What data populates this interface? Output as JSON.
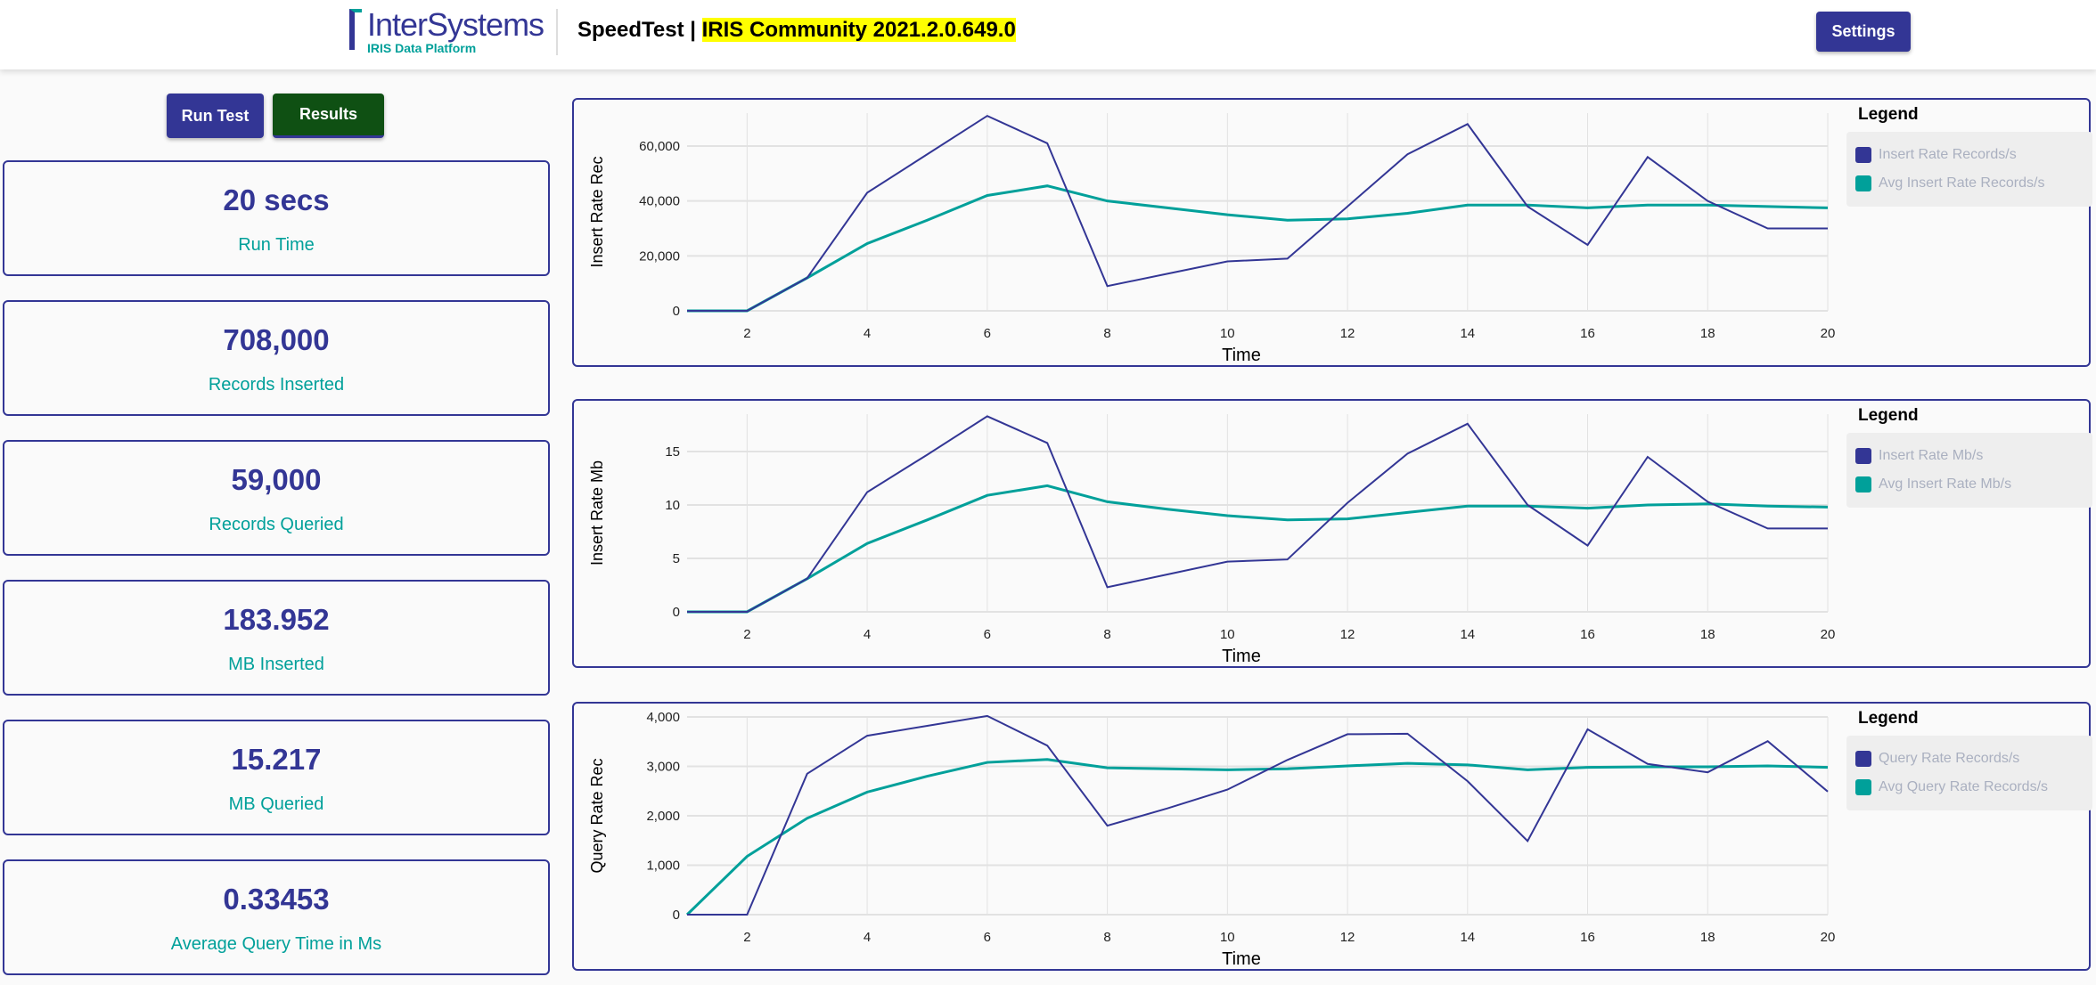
{
  "header": {
    "logo_name": "InterSystems",
    "logo_tag": "IRIS Data Platform",
    "app": "SpeedTest | ",
    "version": "IRIS Community 2021.2.0.649.0",
    "settings": "Settings"
  },
  "buttons": {
    "run": "Run Test",
    "results": "Results"
  },
  "stats": [
    {
      "value": "20 secs",
      "label": "Run Time"
    },
    {
      "value": "708,000",
      "label": "Records Inserted"
    },
    {
      "value": "59,000",
      "label": "Records Queried"
    },
    {
      "value": "183.952",
      "label": "MB Inserted"
    },
    {
      "value": "15.217",
      "label": "MB Queried"
    },
    {
      "value": "0.33453",
      "label": "Average Query Time in Ms"
    }
  ],
  "colors": {
    "primary": "#333695",
    "accent": "#00a09a"
  },
  "chart_data": [
    {
      "type": "line",
      "legend_title": "Legend",
      "xlabel": "Time",
      "ylabel": "Insert Rate Rec",
      "xlim": [
        1,
        20
      ],
      "ylim": [
        0,
        72000
      ],
      "xticks": [
        2,
        4,
        6,
        8,
        10,
        12,
        14,
        16,
        18,
        20
      ],
      "yticks": [
        0,
        20000,
        40000,
        60000
      ],
      "ytick_labels": [
        "0",
        "20,000",
        "40,000",
        "60,000"
      ],
      "x": [
        1,
        2,
        3,
        4,
        5,
        6,
        7,
        8,
        9,
        10,
        11,
        12,
        13,
        14,
        15,
        16,
        17,
        18,
        19,
        20
      ],
      "series": [
        {
          "name": "Insert Rate Records/s",
          "color": "#333695",
          "values": [
            0,
            0,
            12000,
            43000,
            57000,
            71000,
            61000,
            9000,
            13500,
            18000,
            19000,
            38000,
            57000,
            68000,
            38000,
            24000,
            56000,
            40000,
            30000,
            30000
          ]
        },
        {
          "name": "Avg Insert Rate Records/s",
          "color": "#00a09a",
          "values": [
            0,
            0,
            12000,
            24500,
            33000,
            42000,
            45500,
            40000,
            37500,
            35000,
            33000,
            33500,
            35500,
            38500,
            38500,
            37500,
            38500,
            38500,
            38000,
            37500
          ]
        }
      ]
    },
    {
      "type": "line",
      "legend_title": "Legend",
      "xlabel": "Time",
      "ylabel": "Insert Rate Mb",
      "xlim": [
        1,
        20
      ],
      "ylim": [
        0,
        18.5
      ],
      "xticks": [
        2,
        4,
        6,
        8,
        10,
        12,
        14,
        16,
        18,
        20
      ],
      "yticks": [
        0,
        5,
        10,
        15
      ],
      "ytick_labels": [
        "0",
        "5",
        "10",
        "15"
      ],
      "x": [
        1,
        2,
        3,
        4,
        5,
        6,
        7,
        8,
        9,
        10,
        11,
        12,
        13,
        14,
        15,
        16,
        17,
        18,
        19,
        20
      ],
      "series": [
        {
          "name": "Insert Rate Mb/s",
          "color": "#333695",
          "values": [
            0,
            0,
            3.1,
            11.2,
            14.7,
            18.3,
            15.8,
            2.3,
            3.5,
            4.7,
            4.9,
            10.2,
            14.8,
            17.6,
            10,
            6.2,
            14.5,
            10.3,
            7.8,
            7.8
          ]
        },
        {
          "name": "Avg Insert Rate Mb/s",
          "color": "#00a09a",
          "values": [
            0,
            0,
            3.1,
            6.4,
            8.6,
            10.9,
            11.8,
            10.3,
            9.6,
            9,
            8.6,
            8.7,
            9.3,
            9.9,
            9.9,
            9.7,
            10,
            10.1,
            9.9,
            9.8
          ]
        }
      ]
    },
    {
      "type": "line",
      "legend_title": "Legend",
      "xlabel": "Time",
      "ylabel": "Query Rate Rec",
      "xlim": [
        1,
        20
      ],
      "ylim": [
        0,
        4000
      ],
      "xticks": [
        2,
        4,
        6,
        8,
        10,
        12,
        14,
        16,
        18,
        20
      ],
      "yticks": [
        0,
        1000,
        2000,
        3000,
        4000
      ],
      "ytick_labels": [
        "0",
        "1,000",
        "2,000",
        "3,000",
        "4,000"
      ],
      "x": [
        1,
        2,
        3,
        4,
        5,
        6,
        7,
        8,
        9,
        10,
        11,
        12,
        13,
        14,
        15,
        16,
        17,
        18,
        19,
        20
      ],
      "series": [
        {
          "name": "Query Rate Records/s",
          "color": "#333695",
          "values": [
            0,
            0,
            2850,
            3620,
            3820,
            4020,
            3420,
            1800,
            2150,
            2530,
            3130,
            3650,
            3660,
            2700,
            1490,
            3750,
            3050,
            2880,
            3510,
            2490
          ]
        },
        {
          "name": "Avg Query Rate Records/s",
          "color": "#00a09a",
          "values": [
            0,
            1180,
            1950,
            2480,
            2800,
            3080,
            3140,
            2970,
            2950,
            2930,
            2950,
            3010,
            3060,
            3030,
            2930,
            2980,
            2990,
            2990,
            3010,
            2980
          ]
        }
      ]
    }
  ]
}
